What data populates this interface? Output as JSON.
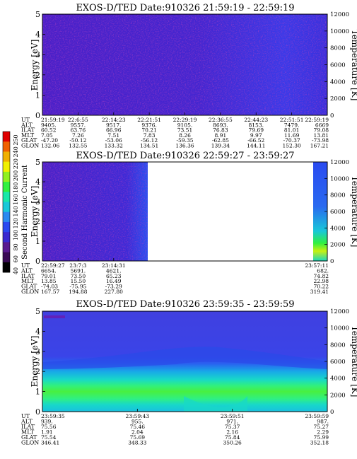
{
  "colorbar": {
    "label": "Second Harmonic Current",
    "ticks": [
      "40",
      "60",
      "80",
      "100",
      "120",
      "140",
      "160",
      "180",
      "200",
      "220",
      "240",
      "250"
    ],
    "colors": [
      "#000000",
      "#3a0a55",
      "#5a1a90",
      "#3a2ad0",
      "#2a4af0",
      "#2a8af0",
      "#18c8d8",
      "#18e8a8",
      "#30f040",
      "#90f020",
      "#f0f000",
      "#f0b000",
      "#f06000",
      "#e00000"
    ]
  },
  "chart_data": [
    {
      "type": "heatmap",
      "title": "EXOS-D/TED   Date:910326  21:59:19 - 22:59:19",
      "ylabel": "Energy [eV]",
      "y2label": "Temperature [K]",
      "ylim": [
        0,
        5
      ],
      "y2lim": [
        0,
        12000
      ],
      "yticks": [
        "0",
        "1",
        "2",
        "3",
        "4",
        "5"
      ],
      "y2ticks": [
        "0",
        "2000",
        "4000",
        "6000",
        "8000",
        "10000",
        "12000"
      ],
      "fill_fraction": 1.0,
      "rows": [
        {
          "label": "UT",
          "values": [
            "21:59:19",
            "22:6:55",
            "22:14:23",
            "22:21:51",
            "22:29:19",
            "22:36:55",
            "22:44:23",
            "22:51:51",
            "22:59:19"
          ]
        },
        {
          "label": "ALT",
          "values": [
            "9405.",
            "9557.",
            "9517.",
            "9376.",
            "9105.",
            "8693.",
            "8153.",
            "7479.",
            "6669"
          ]
        },
        {
          "label": "ILAT",
          "values": [
            "60.52",
            "63.76",
            "66.96",
            "70.21",
            "73.51",
            "76.83",
            "79.69",
            "81.01",
            "79.08"
          ]
        },
        {
          "label": "MLT",
          "values": [
            "7.05",
            "7.26",
            "7.51",
            "7.83",
            "8.26",
            "8.91",
            "9.97",
            "11.69",
            "13.81"
          ]
        },
        {
          "label": "GLAT",
          "values": [
            "-47.20",
            "-50.12",
            "-53.06",
            "-56.12",
            "-59.35",
            "-62.85",
            "-66.52",
            "-70.37",
            "-73.98"
          ]
        },
        {
          "label": "GLON",
          "values": [
            "132.06",
            "132.55",
            "133.32",
            "134.51",
            "136.36",
            "139.34",
            "144.11",
            "152.30",
            "167.21"
          ]
        }
      ]
    },
    {
      "type": "heatmap",
      "title": "EXOS-D/TED   Date:910326  22:59:27 - 23:59:27",
      "ylabel": "Energy [eV]",
      "y2label": "Temperature [K]",
      "ylim": [
        0,
        5
      ],
      "y2lim": [
        0,
        12000
      ],
      "yticks": [
        "0",
        "1",
        "2",
        "3",
        "4",
        "5"
      ],
      "y2ticks": [
        "0",
        "2000",
        "4000",
        "6000",
        "8000",
        "10000",
        "12000"
      ],
      "fill_fraction": 0.35,
      "rows": [
        {
          "label": "UT",
          "values": [
            "22:59:27",
            "23:7:3",
            "23:14:31",
            "",
            "",
            "",
            "",
            "",
            "23:57:11"
          ]
        },
        {
          "label": "ALT",
          "values": [
            "6654.",
            "5691.",
            "4621.",
            "",
            "",
            "",
            "",
            "",
            "682."
          ]
        },
        {
          "label": "ILAT",
          "values": [
            "79.01",
            "73.50",
            "65.23",
            "",
            "",
            "",
            "",
            "",
            "74.82"
          ]
        },
        {
          "label": "MLT",
          "values": [
            "13.85",
            "15.50",
            "16.49",
            "",
            "",
            "",
            "",
            "",
            "22.98"
          ]
        },
        {
          "label": "GLAT",
          "values": [
            "-74.03",
            "-75.95",
            "-73.29",
            "",
            "",
            "",
            "",
            "",
            "70.22"
          ]
        },
        {
          "label": "GLON",
          "values": [
            "167.57",
            "194.88",
            "227.80",
            "",
            "",
            "",
            "",
            "",
            "319.41"
          ]
        }
      ]
    },
    {
      "type": "heatmap",
      "title": "EXOS-D/TED   Date:910326  23:59:35 - 23:59:59",
      "ylabel": "Energy [eV]",
      "y2label": "Temperature [K]",
      "ylim": [
        0,
        5
      ],
      "y2lim": [
        0,
        12000
      ],
      "yticks": [
        "0",
        "1",
        "2",
        "3",
        "4",
        "5"
      ],
      "y2ticks": [
        "0",
        "2000",
        "4000",
        "6000",
        "8000",
        "10000",
        "12000"
      ],
      "fill_fraction": 1.0,
      "rows": [
        {
          "label": "UT",
          "values": [
            "23:59:35",
            "23:59:43",
            "23:59:51",
            "23:59:59"
          ]
        },
        {
          "label": "ALT",
          "values": [
            "939.",
            "955.",
            "971.",
            "987."
          ]
        },
        {
          "label": "ILAT",
          "values": [
            "75.56",
            "75.46",
            "75.37",
            "75.27"
          ]
        },
        {
          "label": "MLT",
          "values": [
            "1.91",
            "2.04",
            "2.16",
            "2.29"
          ]
        },
        {
          "label": "GLAT",
          "values": [
            "75.54",
            "75.69",
            "75.84",
            "75.99"
          ]
        },
        {
          "label": "GLON",
          "values": [
            "346.41",
            "348.33",
            "350.26",
            "352.18"
          ]
        }
      ]
    }
  ]
}
